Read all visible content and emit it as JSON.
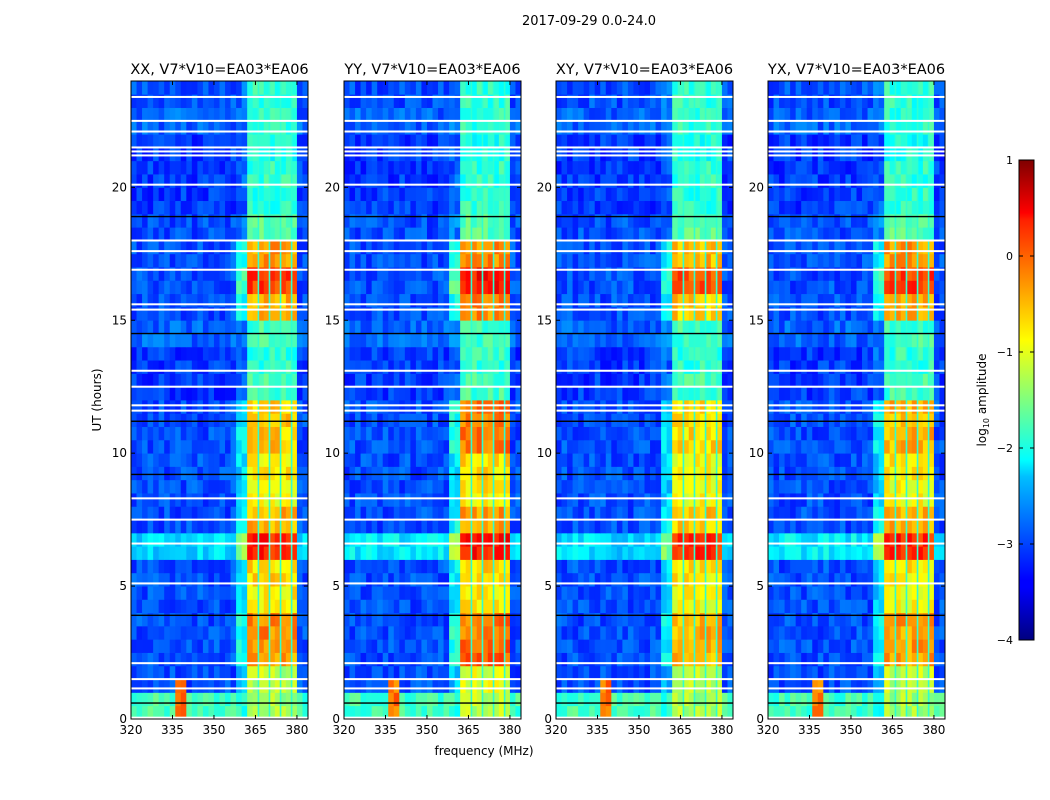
{
  "chart_data": {
    "type": "heatmap",
    "title": "2017-09-29 0.0-24.0",
    "xlabel": "frequency (MHz)",
    "ylabel": "UT (hours)",
    "xlim": [
      320,
      384
    ],
    "ylim": [
      0,
      24
    ],
    "xticks": [
      "320",
      "335",
      "350",
      "365",
      "380"
    ],
    "xtick_values": [
      320,
      335,
      350,
      365,
      380
    ],
    "yticks": [
      "0",
      "5",
      "10",
      "15",
      "20"
    ],
    "ytick_values": [
      0,
      5,
      10,
      15,
      20
    ],
    "colorbar": {
      "label_prefix": "log",
      "label_sub": "10",
      "label_suffix": " amplitude",
      "range": [
        -4,
        1
      ],
      "ticks": [
        "1",
        "0",
        "−1",
        "−2",
        "−3",
        "−4"
      ],
      "tick_values": [
        1,
        0,
        -1,
        -2,
        -3,
        -4
      ],
      "colormap": "jet"
    },
    "rfi_band_mhz": [
      362,
      381
    ],
    "rfi_channel_gaps_mhz": [
      366,
      370,
      374,
      378
    ],
    "spike_mhz": 338,
    "spike_hours": [
      0,
      1.4
    ],
    "flagged_hours_white": [
      0.05,
      1.15,
      1.5,
      2.1,
      5.1,
      6.6,
      7.5,
      8.3,
      11.6,
      11.8,
      12.5,
      13.1,
      15.4,
      15.6,
      16.9,
      17.6,
      18.0,
      20.1,
      21.2,
      21.35,
      21.5,
      22.1,
      22.5,
      23.4
    ],
    "flagged_hours_black": [
      0.6,
      3.9,
      9.2,
      11.2,
      14.5,
      18.9
    ],
    "panels": [
      {
        "title": "XX, V7*V10=EA03*EA06",
        "background": [
          -1.8,
          -3.0,
          -3.0,
          -3.0,
          -3.0,
          -3.0,
          -2.3,
          -3.0,
          -3.0,
          -3.0,
          -3.0,
          -3.0,
          -3.1,
          -3.1,
          -2.9,
          -3.0,
          -3.0,
          -3.0,
          -3.0,
          -3.1,
          -3.1,
          -3.1,
          -2.9,
          -3.0
        ],
        "rfi_band": [
          -1.3,
          -1.2,
          -0.4,
          -0.3,
          -0.8,
          -0.7,
          0.2,
          -0.5,
          -0.9,
          -0.8,
          -0.6,
          -0.6,
          -1.8,
          -1.9,
          -1.8,
          -0.5,
          0.1,
          -0.4,
          -1.7,
          -1.9,
          -1.9,
          -2.0,
          -1.9,
          -1.9
        ]
      },
      {
        "title": "YY, V7*V10=EA03*EA06",
        "background": [
          -1.8,
          -3.0,
          -3.0,
          -3.0,
          -3.0,
          -3.0,
          -2.2,
          -3.0,
          -3.0,
          -3.0,
          -3.0,
          -3.0,
          -3.1,
          -3.1,
          -2.9,
          -3.0,
          -3.0,
          -3.0,
          -3.0,
          -3.1,
          -3.1,
          -3.1,
          -2.9,
          -3.0
        ],
        "rfi_band": [
          -1.2,
          -1.0,
          -0.1,
          -0.2,
          -0.8,
          -0.7,
          0.3,
          -0.4,
          -0.8,
          -0.7,
          -0.2,
          -0.2,
          -1.8,
          -1.9,
          -1.8,
          -0.3,
          0.3,
          -0.3,
          -1.7,
          -1.9,
          -1.9,
          -2.0,
          -1.9,
          -1.9
        ]
      },
      {
        "title": "XY, V7*V10=EA03*EA06",
        "background": [
          -1.8,
          -3.0,
          -3.0,
          -3.0,
          -3.0,
          -3.0,
          -2.3,
          -3.0,
          -3.0,
          -3.0,
          -3.0,
          -3.0,
          -3.1,
          -3.1,
          -2.9,
          -3.0,
          -3.0,
          -3.0,
          -3.0,
          -3.1,
          -3.1,
          -3.1,
          -2.9,
          -3.0
        ],
        "rfi_band": [
          -1.3,
          -1.2,
          -0.5,
          -0.5,
          -0.9,
          -0.8,
          0.1,
          -0.6,
          -0.9,
          -0.9,
          -0.7,
          -0.7,
          -1.8,
          -1.9,
          -1.8,
          -0.6,
          0.0,
          -0.5,
          -1.7,
          -1.9,
          -1.9,
          -2.0,
          -1.9,
          -1.9
        ]
      },
      {
        "title": "YX, V7*V10=EA03*EA06",
        "background": [
          -1.8,
          -3.0,
          -3.0,
          -3.0,
          -3.0,
          -3.0,
          -2.2,
          -3.0,
          -3.0,
          -3.0,
          -3.0,
          -3.0,
          -3.1,
          -3.1,
          -2.9,
          -3.0,
          -3.0,
          -3.0,
          -3.0,
          -3.1,
          -3.1,
          -3.1,
          -2.9,
          -3.0
        ],
        "rfi_band": [
          -1.3,
          -1.2,
          -0.4,
          -0.4,
          -0.9,
          -0.8,
          0.2,
          -0.5,
          -0.9,
          -0.8,
          -0.5,
          -0.5,
          -1.8,
          -1.9,
          -1.8,
          -0.5,
          0.1,
          -0.4,
          -1.7,
          -1.9,
          -1.9,
          -2.0,
          -1.9,
          -1.9
        ]
      }
    ]
  }
}
